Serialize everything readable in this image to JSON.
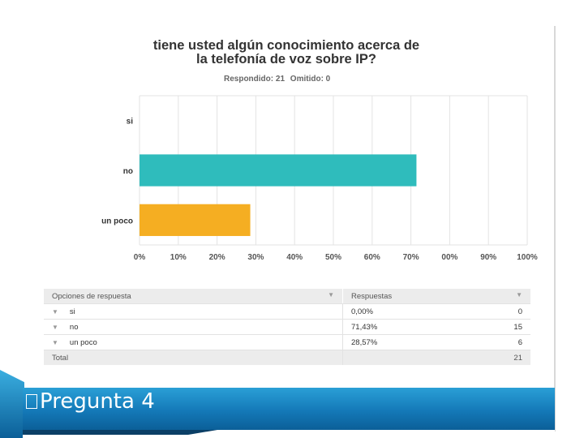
{
  "header": {
    "title_line1": "tiene usted algún conocimiento acerca de",
    "title_line2": "la telefonía de voz sobre IP?",
    "respondido": "Respondido: 21",
    "omitido": "Omitido: 0"
  },
  "chart_data": {
    "type": "bar",
    "orientation": "horizontal",
    "categories": [
      "si",
      "no",
      "un poco"
    ],
    "values": [
      0,
      71.43,
      28.57
    ],
    "colors": [
      "#2fbcbc",
      "#2fbcbc",
      "#f5ae22"
    ],
    "xlim": [
      0,
      100
    ],
    "tick_labels": [
      "0%",
      "10%",
      "20%",
      "30%",
      "40%",
      "50%",
      "60%",
      "70%",
      "00%",
      "90%",
      "100%"
    ],
    "grid": true
  },
  "table": {
    "col1_header": "Opciones de respuesta",
    "col2_header": "Respuestas",
    "rows": [
      {
        "option": "si",
        "pct": "0,00%",
        "count": "0"
      },
      {
        "option": "no",
        "pct": "71,43%",
        "count": "15"
      },
      {
        "option": "un poco",
        "pct": "28,57%",
        "count": "6"
      }
    ],
    "total_label": "Total",
    "total_value": "21"
  },
  "footer": {
    "label": "Pregunta 4",
    "bullet_icon": "square-bullet-icon"
  }
}
